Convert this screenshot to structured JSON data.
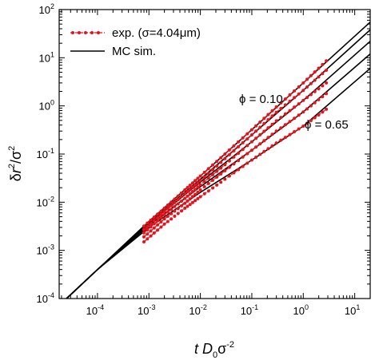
{
  "chart_data": {
    "type": "line",
    "x_scale": "log",
    "y_scale": "log",
    "xlim": [
      1.8e-05,
      20
    ],
    "ylim": [
      0.0001,
      100
    ],
    "xlabel": "t D0σ-2",
    "ylabel": "δr2/σ2",
    "x_ticks": [
      {
        "base": "10",
        "exp": "-4",
        "value": 0.0001
      },
      {
        "base": "10",
        "exp": "-3",
        "value": 0.001
      },
      {
        "base": "10",
        "exp": "-2",
        "value": 0.01
      },
      {
        "base": "10",
        "exp": "-1",
        "value": 0.1
      },
      {
        "base": "10",
        "exp": "0",
        "value": 1
      },
      {
        "base": "10",
        "exp": "1",
        "value": 10
      }
    ],
    "y_ticks": [
      {
        "base": "10",
        "exp": "-4",
        "value": 0.0001
      },
      {
        "base": "10",
        "exp": "-3",
        "value": 0.001
      },
      {
        "base": "10",
        "exp": "-2",
        "value": 0.01
      },
      {
        "base": "10",
        "exp": "-1",
        "value": 0.1
      },
      {
        "base": "10",
        "exp": "0",
        "value": 1
      },
      {
        "base": "10",
        "exp": "1",
        "value": 10
      },
      {
        "base": "10",
        "exp": "2",
        "value": 100
      }
    ],
    "legend": {
      "placement": "top-left",
      "entries": [
        {
          "label": "exp. (σ=4.04μm)",
          "style": "red-dashed-dots"
        },
        {
          "label": "MC sim.",
          "style": "black-solid"
        }
      ]
    },
    "annotations": [
      {
        "text": "ϕ = 0.10",
        "x": 0.35,
        "y": 2.5
      },
      {
        "text": "ϕ = 0.65",
        "x": 2.2,
        "y": 0.13
      }
    ],
    "colors": {
      "experiment": "#e8121b",
      "simulation": "#000000"
    },
    "series": [
      {
        "kind": "simulation",
        "x": [
          2.5e-05,
          0.0001,
          0.001,
          0.01,
          0.1,
          1,
          20
        ],
        "y": [
          0.0001,
          0.0004,
          0.004,
          0.035,
          0.32,
          3.0,
          55
        ]
      },
      {
        "kind": "simulation",
        "x": [
          2.5e-05,
          0.0001,
          0.001,
          0.01,
          0.1,
          1,
          20
        ],
        "y": [
          0.0001,
          0.0004,
          0.0038,
          0.03,
          0.25,
          2.1,
          38
        ]
      },
      {
        "kind": "simulation",
        "x": [
          2.5e-05,
          0.0001,
          0.001,
          0.01,
          0.1,
          1,
          20
        ],
        "y": [
          0.0001,
          0.0004,
          0.0036,
          0.026,
          0.18,
          1.3,
          22
        ]
      },
      {
        "kind": "simulation",
        "x": [
          2.5e-05,
          0.0001,
          0.001,
          0.01,
          0.1,
          1,
          20
        ],
        "y": [
          0.0001,
          0.0004,
          0.0033,
          0.021,
          0.12,
          0.75,
          12
        ]
      },
      {
        "kind": "simulation",
        "x": [
          2.5e-05,
          0.0001,
          0.001,
          0.01,
          0.1,
          1,
          20
        ],
        "y": [
          0.0001,
          0.0004,
          0.003,
          0.016,
          0.075,
          0.38,
          6
        ]
      },
      {
        "kind": "experiment",
        "x": [
          0.0008,
          0.002,
          0.005,
          0.01,
          0.03,
          0.1,
          0.3,
          1,
          2.8
        ],
        "y": [
          0.0032,
          0.0075,
          0.018,
          0.035,
          0.1,
          0.32,
          0.95,
          3.0,
          8.6
        ]
      },
      {
        "kind": "experiment",
        "x": [
          0.0008,
          0.002,
          0.005,
          0.01,
          0.03,
          0.1,
          0.3,
          1,
          2.8
        ],
        "y": [
          0.0027,
          0.0064,
          0.015,
          0.028,
          0.08,
          0.25,
          0.74,
          2.1,
          5.5
        ]
      },
      {
        "kind": "experiment",
        "x": [
          0.0008,
          0.002,
          0.005,
          0.01,
          0.03,
          0.1,
          0.3,
          1,
          2.8
        ],
        "y": [
          0.0023,
          0.0055,
          0.012,
          0.023,
          0.06,
          0.18,
          0.49,
          1.3,
          3.0
        ]
      },
      {
        "kind": "experiment",
        "x": [
          0.0008,
          0.002,
          0.005,
          0.01,
          0.03,
          0.1,
          0.3,
          1,
          2.8
        ],
        "y": [
          0.0019,
          0.0045,
          0.0095,
          0.018,
          0.045,
          0.12,
          0.3,
          0.75,
          1.8
        ]
      },
      {
        "kind": "experiment",
        "x": [
          0.0008,
          0.002,
          0.005,
          0.01,
          0.03,
          0.1,
          0.3,
          1,
          2.8
        ],
        "y": [
          0.0015,
          0.0035,
          0.0075,
          0.013,
          0.03,
          0.075,
          0.17,
          0.38,
          0.85
        ]
      }
    ]
  }
}
